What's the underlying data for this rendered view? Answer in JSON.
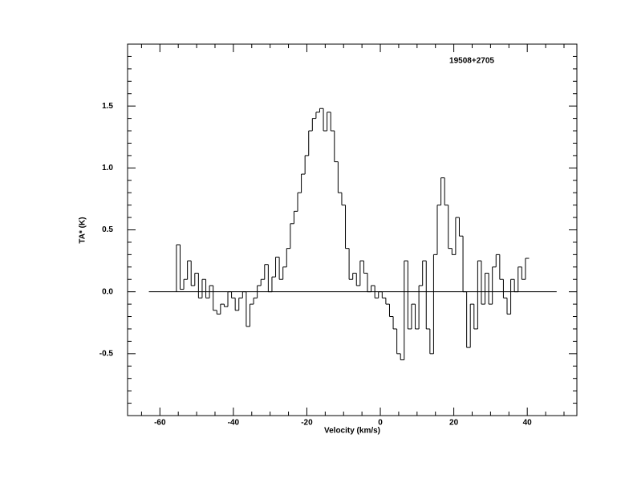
{
  "chart_data": {
    "type": "step",
    "title": "19508+2705",
    "x_label": "Velocity (km/s)",
    "y_label": "TA* (K)",
    "color": "#000000",
    "x": [
      -55,
      -54,
      -53,
      -52,
      -51,
      -50,
      -49,
      -48,
      -47,
      -46,
      -45,
      -44,
      -43,
      -42,
      -41,
      -40,
      -39,
      -38,
      -37,
      -36,
      -35,
      -34,
      -33,
      -32,
      -31,
      -30,
      -29,
      -28,
      -27,
      -26,
      -25,
      -24,
      -23,
      -22,
      -21,
      -20,
      -19,
      -18,
      -17,
      -16,
      -15,
      -14,
      -13,
      -12,
      -11,
      -10,
      -9,
      -8,
      -7,
      -6,
      -5,
      -4,
      -3,
      -2,
      -1,
      0,
      1,
      2,
      3,
      4,
      5,
      6,
      7,
      8,
      9,
      10,
      11,
      12,
      13,
      14,
      15,
      16,
      17,
      18,
      19,
      20,
      21,
      22,
      23,
      24,
      25,
      26,
      27,
      28,
      29,
      30,
      31,
      32,
      33,
      34,
      35,
      36,
      37,
      38,
      39,
      40
    ],
    "values": [
      0.38,
      0.02,
      0.1,
      0.25,
      0.05,
      0.15,
      -0.05,
      0.1,
      -0.05,
      0.05,
      -0.15,
      -0.18,
      -0.1,
      -0.12,
      0.0,
      -0.05,
      -0.15,
      -0.05,
      0.0,
      -0.28,
      -0.1,
      -0.05,
      0.05,
      0.1,
      0.22,
      0.0,
      0.12,
      0.28,
      0.1,
      0.2,
      0.35,
      0.55,
      0.65,
      0.8,
      0.95,
      1.1,
      1.3,
      1.4,
      1.45,
      1.48,
      1.3,
      1.45,
      1.3,
      1.05,
      0.8,
      0.7,
      0.35,
      0.1,
      0.15,
      0.05,
      0.25,
      0.15,
      0.0,
      0.05,
      -0.05,
      0.0,
      -0.05,
      -0.1,
      -0.2,
      -0.3,
      -0.5,
      -0.55,
      0.25,
      -0.3,
      -0.1,
      -0.3,
      0.05,
      0.25,
      -0.3,
      -0.5,
      0.3,
      0.7,
      0.92,
      0.7,
      0.35,
      0.3,
      0.6,
      0.45,
      0.0,
      -0.45,
      -0.1,
      -0.3,
      0.25,
      -0.1,
      0.15,
      -0.1,
      0.2,
      0.3,
      0.1,
      -0.05,
      -0.18,
      0.1,
      0.0,
      0.2,
      0.1,
      0.27
    ],
    "baseline": {
      "x": [
        -63,
        48
      ],
      "y": 0
    },
    "xlim": [
      -68.8,
      53.5
    ],
    "ylim": [
      -1,
      2
    ],
    "xticks": [
      -60,
      -40,
      -20,
      0,
      20,
      40
    ],
    "xminorticks": [
      -65,
      -55,
      -50,
      -45,
      -35,
      -30,
      -25,
      -15,
      -10,
      -5,
      5,
      10,
      15,
      25,
      30,
      35,
      45,
      50
    ],
    "yticks": [
      -0.5,
      {
        "value": 0,
        "label": "0.0"
      },
      0.5,
      {
        "value": 1,
        "label": "1.0"
      },
      1.5
    ],
    "yminorticks": [
      -0.9,
      -0.8,
      -0.7,
      -0.6,
      -0.4,
      -0.3,
      -0.2,
      -0.1,
      0.1,
      0.2,
      0.3,
      0.4,
      0.6,
      0.7,
      0.8,
      0.9,
      1.1,
      1.2,
      1.3,
      1.4,
      1.6,
      1.7,
      1.8,
      1.9
    ]
  }
}
